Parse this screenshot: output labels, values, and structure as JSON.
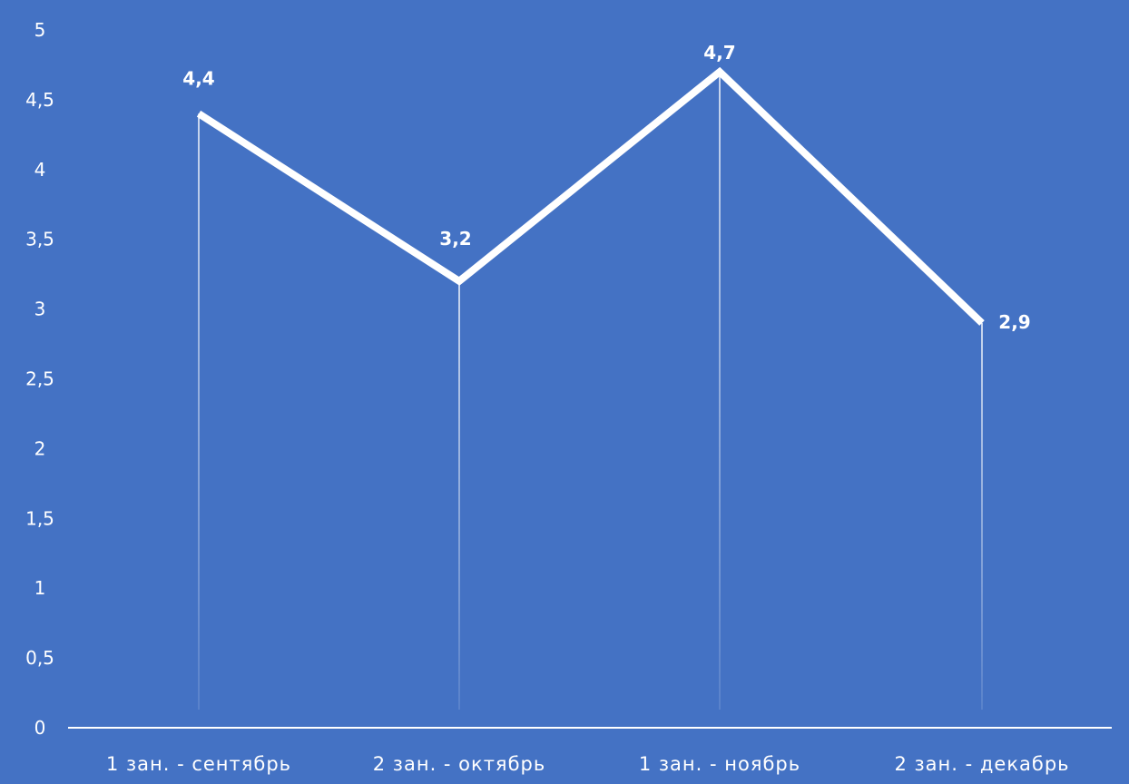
{
  "chart_data": {
    "type": "line",
    "title": "",
    "xlabel": "",
    "ylabel": "",
    "categories": [
      "1 зан. - сентябрь",
      "2 зан. - октябрь",
      "1 зан. - ноябрь",
      "2 зан. - декабрь"
    ],
    "series": [
      {
        "values": [
          4.4,
          3.2,
          4.7,
          2.9
        ],
        "data_labels": [
          "4,4",
          "3,2",
          "4,7",
          "2,9"
        ],
        "color": "#ffffff"
      }
    ],
    "ylim": [
      0,
      5
    ],
    "y_ticks": [
      {
        "value": 0,
        "label": "0"
      },
      {
        "value": 0.5,
        "label": "0,5"
      },
      {
        "value": 1,
        "label": "1"
      },
      {
        "value": 1.5,
        "label": "1,5"
      },
      {
        "value": 2,
        "label": "2"
      },
      {
        "value": 2.5,
        "label": "2,5"
      },
      {
        "value": 3,
        "label": "3"
      },
      {
        "value": 3.5,
        "label": "3,5"
      },
      {
        "value": 4,
        "label": "4"
      },
      {
        "value": 4.5,
        "label": "4,5"
      },
      {
        "value": 5,
        "label": "5"
      }
    ],
    "drop_lines": true,
    "grid": false,
    "legend": "none",
    "background_color": "#4472c4",
    "line_color": "#ffffff"
  }
}
